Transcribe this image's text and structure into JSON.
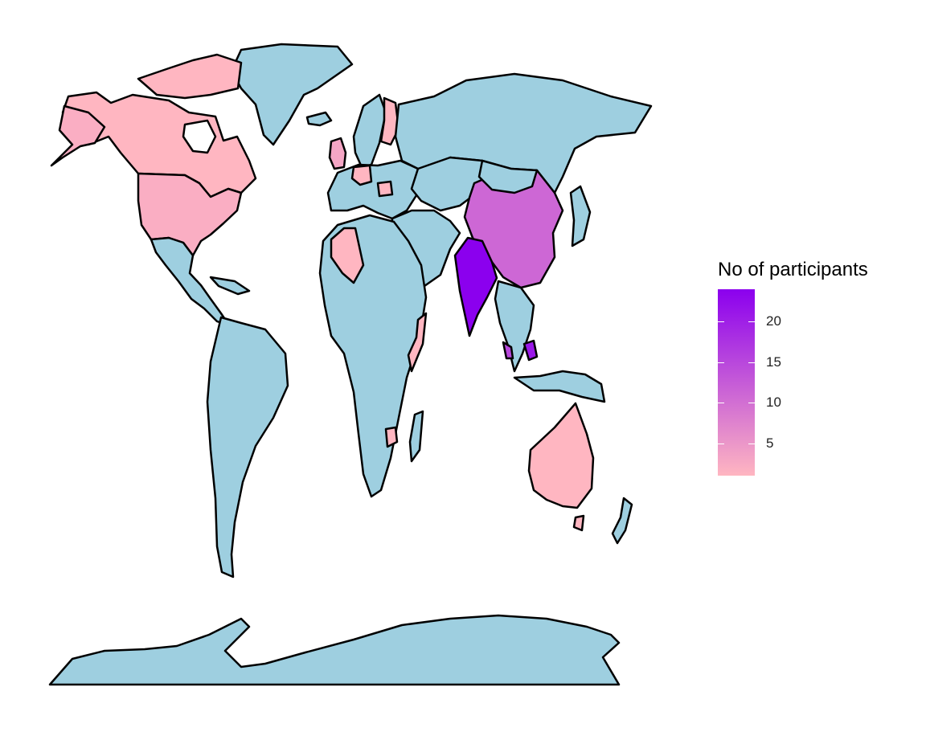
{
  "map": {
    "countries": [
      {
        "name": "Canada",
        "value": 1
      },
      {
        "name": "United States",
        "value": 2
      },
      {
        "name": "Algeria",
        "value": 1
      },
      {
        "name": "Somalia",
        "value": 1
      },
      {
        "name": "India",
        "value": 24
      },
      {
        "name": "China",
        "value": 11
      },
      {
        "name": "Australia",
        "value": 1
      },
      {
        "name": "Finland",
        "value": 1
      },
      {
        "name": "United Kingdom",
        "value": 3
      },
      {
        "name": "Germany",
        "value": 1
      },
      {
        "name": "Romania",
        "value": 1
      },
      {
        "name": "Philippines",
        "value": 21
      },
      {
        "name": "Malaysia",
        "value": 15
      },
      {
        "name": "Zimbabwe",
        "value": 1
      }
    ],
    "default_fill": "#9ecfe0",
    "border_color": "#000000",
    "water_color": "#ffffff"
  },
  "legend": {
    "title": "No of participants",
    "min": 1,
    "max": 24,
    "low_color": "#ffb6c1",
    "high_color": "#8b00ee",
    "ticks": [
      {
        "value": 20,
        "label": "20"
      },
      {
        "value": 15,
        "label": "15"
      },
      {
        "value": 10,
        "label": "10"
      },
      {
        "value": 5,
        "label": "5"
      }
    ]
  }
}
